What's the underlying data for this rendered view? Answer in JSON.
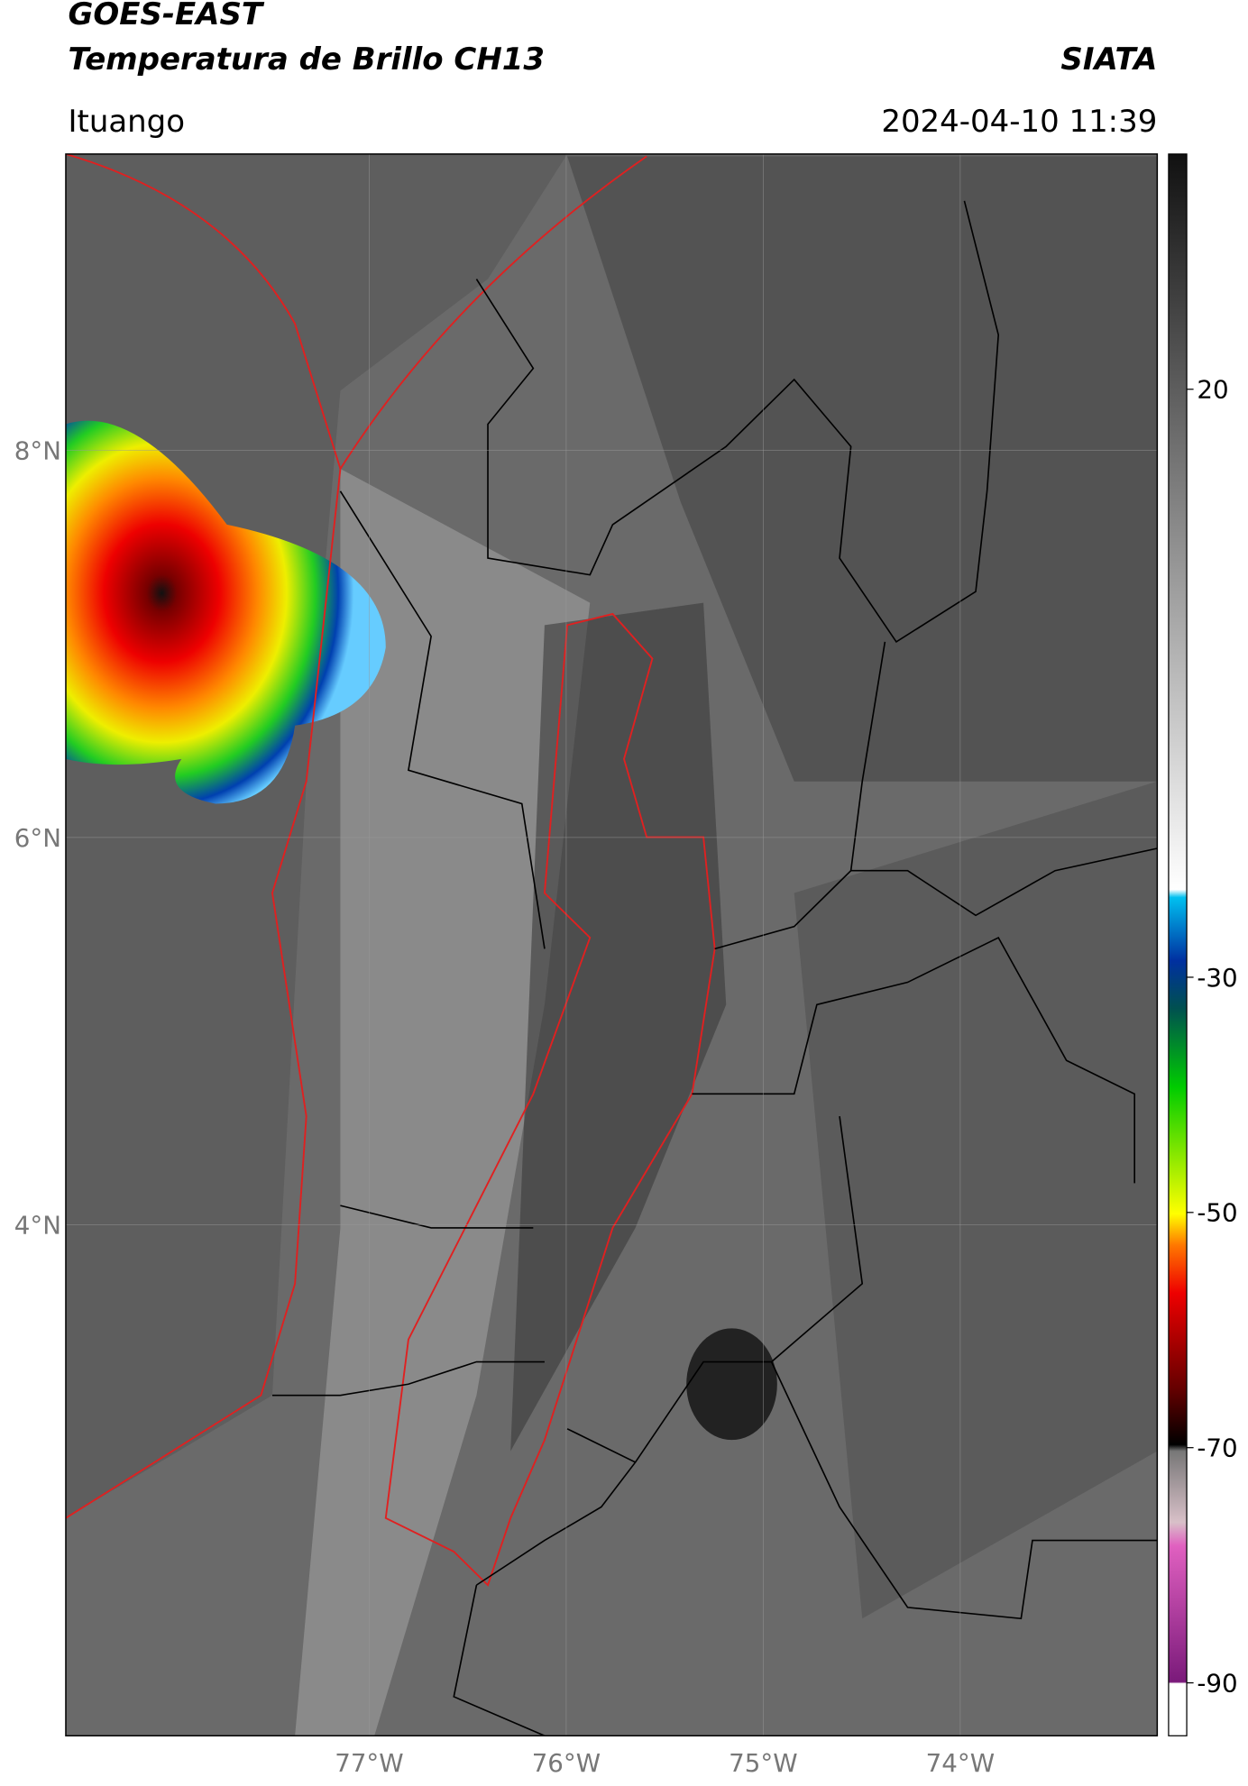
{
  "header": {
    "title": "GOES-EAST",
    "subtitle": "Temperatura de Brillo CH13",
    "source": "SIATA",
    "location": "Ituango",
    "datetime": "2024-04-10 11:39"
  },
  "map": {
    "xlim": [
      -78.54,
      -73.0
    ],
    "ylim": [
      1.36,
      9.53
    ],
    "xticks": [
      {
        "value": -77,
        "label": "77°W"
      },
      {
        "value": -76,
        "label": "76°W"
      },
      {
        "value": -75,
        "label": "75°W"
      },
      {
        "value": -74,
        "label": "74°W"
      }
    ],
    "yticks": [
      {
        "value": 8,
        "label": "8°N"
      },
      {
        "value": 6,
        "label": "6°N"
      },
      {
        "value": 4,
        "label": "4°N"
      }
    ],
    "grid": true
  },
  "colorbar": {
    "lim": [
      -94.5,
      40
    ],
    "ticks": [
      20,
      -30,
      -50,
      -70,
      -90
    ]
  }
}
